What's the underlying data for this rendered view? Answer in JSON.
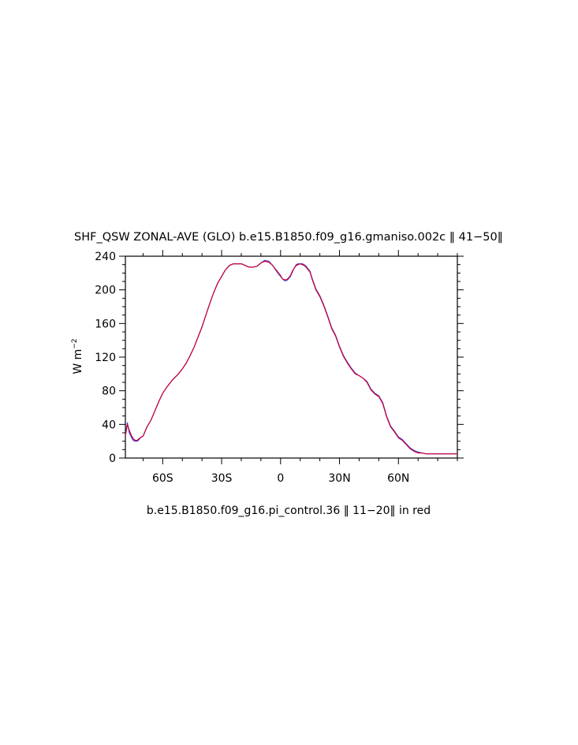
{
  "chart_data": {
    "type": "line",
    "title": "SHF_QSW ZONAL-AVE (GLO) b.e15.B1850.f09_g16.gmaniso.002c ‖ 41−50‖",
    "ylabel": "W m",
    "ylabel_superscript": "−2",
    "caption": "b.e15.B1850.f09_g16.pi_control.36 ‖ 11−20‖ in red",
    "xlim": [
      -79,
      90
    ],
    "ylim": [
      0,
      240
    ],
    "x_ticks": [
      {
        "value": -60,
        "label": "60S"
      },
      {
        "value": -30,
        "label": "30S"
      },
      {
        "value": 0,
        "label": "0"
      },
      {
        "value": 30,
        "label": "30N"
      },
      {
        "value": 60,
        "label": "60N"
      }
    ],
    "y_ticks": [
      {
        "value": 0,
        "label": "0"
      },
      {
        "value": 40,
        "label": "40"
      },
      {
        "value": 80,
        "label": "80"
      },
      {
        "value": 120,
        "label": "120"
      },
      {
        "value": 160,
        "label": "160"
      },
      {
        "value": 200,
        "label": "200"
      },
      {
        "value": 240,
        "label": "240"
      }
    ],
    "grid": false,
    "series": [
      {
        "color": "#3a3ad8",
        "x": [
          -79,
          -78,
          -77,
          -76,
          -75,
          -74,
          -73,
          -72,
          -71,
          -70,
          -68,
          -66,
          -64,
          -62,
          -60,
          -58,
          -55,
          -52,
          -50,
          -48,
          -46,
          -44,
          -42,
          -40,
          -38,
          -36,
          -34,
          -32,
          -30,
          -28,
          -26,
          -24,
          -22,
          -20,
          -18,
          -16,
          -14,
          -12,
          -10,
          -8,
          -6,
          -4,
          -2,
          0,
          1,
          2,
          3,
          4,
          5,
          6,
          7,
          8,
          9,
          10,
          11,
          12,
          13,
          14,
          15,
          16,
          18,
          20,
          22,
          24,
          26,
          28,
          30,
          32,
          34,
          36,
          38,
          40,
          42,
          44,
          46,
          48,
          50,
          52,
          54,
          56,
          58,
          60,
          62,
          64,
          66,
          68,
          70,
          72,
          74,
          76,
          78,
          80,
          82,
          84,
          86,
          88,
          90
        ],
        "y": [
          27,
          42,
          30,
          25,
          21,
          20,
          20,
          22,
          25,
          26,
          37,
          45,
          56,
          67,
          77,
          84,
          93,
          100,
          106,
          113,
          122,
          132,
          144,
          156,
          170,
          184,
          197,
          208,
          216,
          224,
          229,
          231,
          231,
          231,
          229,
          227,
          227,
          228,
          232,
          235,
          234,
          229,
          222,
          216,
          213,
          211,
          211,
          213,
          216,
          221,
          226,
          230,
          231,
          231,
          231,
          230,
          228,
          225,
          222,
          214,
          201,
          193,
          182,
          169,
          155,
          146,
          133,
          122,
          114,
          107,
          101,
          98,
          95,
          91,
          82,
          77,
          74,
          66,
          50,
          38,
          32,
          25,
          22,
          17,
          12,
          9,
          7,
          6,
          5,
          5,
          5,
          5,
          5,
          5,
          5,
          5,
          5
        ]
      },
      {
        "color": "#cc0033",
        "x": [
          -79,
          -78,
          -77,
          -76,
          -75,
          -74,
          -73,
          -72,
          -71,
          -70,
          -68,
          -66,
          -64,
          -62,
          -60,
          -58,
          -55,
          -52,
          -50,
          -48,
          -46,
          -44,
          -42,
          -40,
          -38,
          -36,
          -34,
          -32,
          -30,
          -28,
          -26,
          -24,
          -22,
          -20,
          -18,
          -16,
          -14,
          -12,
          -10,
          -8,
          -6,
          -4,
          -2,
          0,
          1,
          2,
          3,
          4,
          5,
          6,
          7,
          8,
          9,
          10,
          11,
          12,
          13,
          14,
          15,
          16,
          18,
          20,
          22,
          24,
          26,
          28,
          30,
          32,
          34,
          36,
          38,
          40,
          42,
          44,
          46,
          48,
          50,
          52,
          54,
          56,
          58,
          60,
          62,
          64,
          66,
          68,
          70,
          72,
          74,
          76,
          78,
          80,
          82,
          84,
          86,
          88,
          90
        ],
        "y": [
          26,
          40,
          33,
          27,
          23,
          21,
          21,
          23,
          25,
          26,
          37,
          45,
          56,
          67,
          77,
          84,
          93,
          100,
          106,
          113,
          122,
          132,
          144,
          156,
          170,
          184,
          197,
          208,
          216,
          224,
          229,
          231,
          231,
          231,
          229,
          227,
          227,
          228,
          232,
          234,
          233,
          229,
          223,
          217,
          213,
          212,
          212,
          214,
          217,
          222,
          226,
          229,
          230,
          231,
          230,
          229,
          227,
          224,
          221,
          213,
          200,
          192,
          181,
          168,
          154,
          145,
          132,
          121,
          113,
          106,
          100,
          98,
          95,
          90,
          81,
          76,
          73,
          65,
          49,
          37,
          31,
          24,
          21,
          16,
          11,
          8,
          6,
          6,
          5,
          5,
          5,
          5,
          5,
          5,
          5,
          5,
          5
        ]
      }
    ]
  }
}
